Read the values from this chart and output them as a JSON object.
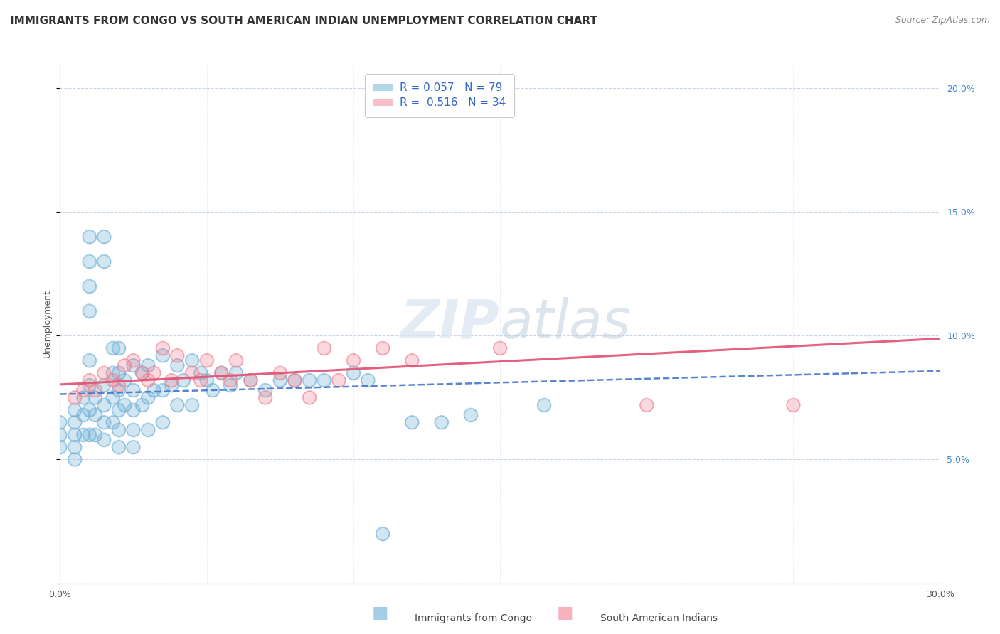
{
  "title": "IMMIGRANTS FROM CONGO VS SOUTH AMERICAN INDIAN UNEMPLOYMENT CORRELATION CHART",
  "source": "Source: ZipAtlas.com",
  "ylabel": "Unemployment",
  "xlim": [
    0,
    0.3
  ],
  "ylim": [
    0,
    0.21
  ],
  "series1_label": "Immigrants from Congo",
  "series2_label": "South American Indians",
  "series1_color": "#6aaed6",
  "series2_color": "#f08090",
  "series1_line_color": "#4477cc",
  "series2_line_color": "#e05070",
  "series1_R": 0.057,
  "series2_R": 0.516,
  "series1_N": 79,
  "series2_N": 34,
  "background_color": "#ffffff",
  "grid_color": "#c8d4e8",
  "watermark": "ZIPatlas",
  "congo_x": [
    0.0,
    0.0,
    0.0,
    0.005,
    0.005,
    0.005,
    0.005,
    0.005,
    0.008,
    0.008,
    0.008,
    0.01,
    0.01,
    0.01,
    0.01,
    0.01,
    0.01,
    0.01,
    0.01,
    0.012,
    0.012,
    0.012,
    0.015,
    0.015,
    0.015,
    0.015,
    0.015,
    0.015,
    0.018,
    0.018,
    0.018,
    0.018,
    0.02,
    0.02,
    0.02,
    0.02,
    0.02,
    0.02,
    0.022,
    0.022,
    0.025,
    0.025,
    0.025,
    0.025,
    0.025,
    0.028,
    0.028,
    0.03,
    0.03,
    0.03,
    0.032,
    0.035,
    0.035,
    0.035,
    0.038,
    0.04,
    0.04,
    0.042,
    0.045,
    0.045,
    0.048,
    0.05,
    0.052,
    0.055,
    0.058,
    0.06,
    0.065,
    0.07,
    0.075,
    0.08,
    0.085,
    0.09,
    0.1,
    0.105,
    0.11,
    0.12,
    0.13,
    0.14,
    0.165
  ],
  "congo_y": [
    0.065,
    0.06,
    0.055,
    0.07,
    0.065,
    0.06,
    0.055,
    0.05,
    0.075,
    0.068,
    0.06,
    0.14,
    0.13,
    0.12,
    0.11,
    0.09,
    0.08,
    0.07,
    0.06,
    0.075,
    0.068,
    0.06,
    0.14,
    0.13,
    0.08,
    0.072,
    0.065,
    0.058,
    0.095,
    0.085,
    0.075,
    0.065,
    0.095,
    0.085,
    0.078,
    0.07,
    0.062,
    0.055,
    0.082,
    0.072,
    0.088,
    0.078,
    0.07,
    0.062,
    0.055,
    0.085,
    0.072,
    0.088,
    0.075,
    0.062,
    0.078,
    0.092,
    0.078,
    0.065,
    0.08,
    0.088,
    0.072,
    0.082,
    0.09,
    0.072,
    0.085,
    0.082,
    0.078,
    0.085,
    0.08,
    0.085,
    0.082,
    0.078,
    0.082,
    0.082,
    0.082,
    0.082,
    0.085,
    0.082,
    0.02,
    0.065,
    0.065,
    0.068,
    0.072
  ],
  "sai_x": [
    0.005,
    0.008,
    0.01,
    0.012,
    0.015,
    0.018,
    0.02,
    0.022,
    0.025,
    0.028,
    0.03,
    0.032,
    0.035,
    0.038,
    0.04,
    0.045,
    0.048,
    0.05,
    0.055,
    0.058,
    0.06,
    0.065,
    0.07,
    0.075,
    0.08,
    0.085,
    0.09,
    0.095,
    0.1,
    0.11,
    0.12,
    0.15,
    0.2,
    0.25
  ],
  "sai_y": [
    0.075,
    0.078,
    0.082,
    0.078,
    0.085,
    0.082,
    0.08,
    0.088,
    0.09,
    0.085,
    0.082,
    0.085,
    0.095,
    0.082,
    0.092,
    0.085,
    0.082,
    0.09,
    0.085,
    0.082,
    0.09,
    0.082,
    0.075,
    0.085,
    0.082,
    0.075,
    0.095,
    0.082,
    0.09,
    0.095,
    0.09,
    0.095,
    0.072,
    0.072
  ],
  "title_fontsize": 11,
  "source_fontsize": 9,
  "axis_label_fontsize": 9,
  "tick_fontsize": 9,
  "legend_fontsize": 11
}
